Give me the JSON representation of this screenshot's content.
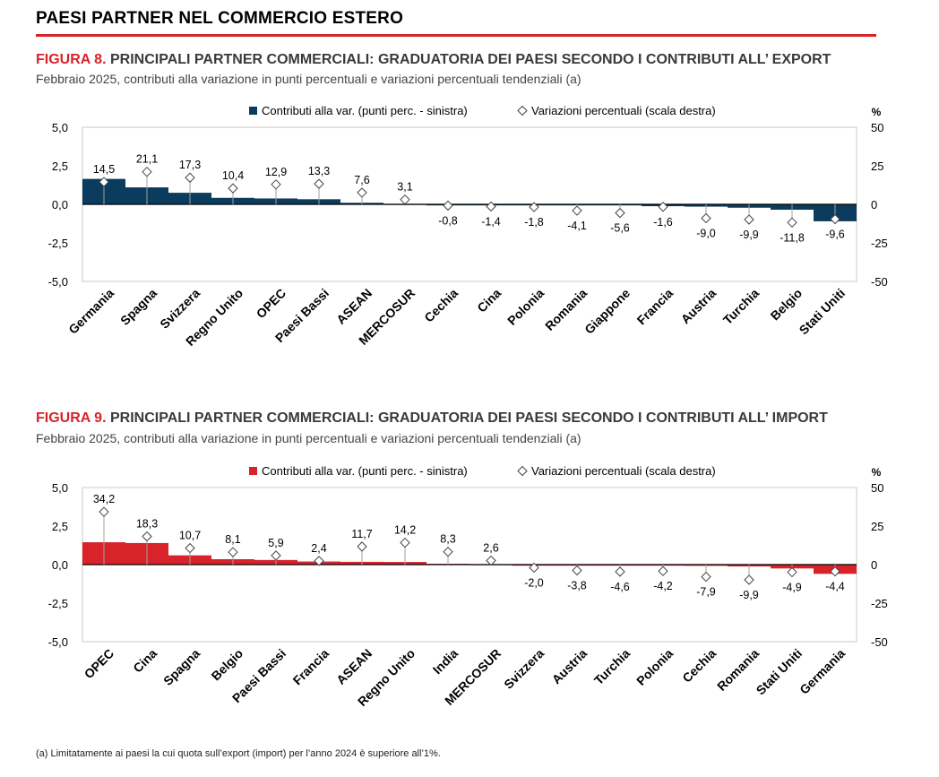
{
  "page_title": "PAESI PARTNER NEL COMMERCIO ESTERO",
  "colors": {
    "accent": "#d8232a",
    "export_bar": "#0b3c5d",
    "import_bar": "#d8232a"
  },
  "chart_data": [
    {
      "type": "bar",
      "title_num": "FIGURA 8.",
      "title": "PRINCIPALI PARTNER COMMERCIALI: GRADUATORIA DEI PAESI SECONDO I CONTRIBUTI ALL’ EXPORT",
      "subtitle": "Febbraio 2025, contributi alla variazione in punti percentuali e variazioni percentuali tendenziali (a)",
      "right_axis_unit": "%",
      "categories": [
        "Germania",
        "Spagna",
        "Svizzera",
        "Regno Unito",
        "OPEC",
        "Paesi Bassi",
        "ASEAN",
        "MERCOSUR",
        "Cechia",
        "Cina",
        "Polonia",
        "Romania",
        "Giappone",
        "Francia",
        "Austria",
        "Turchia",
        "Belgio",
        "Stati Uniti"
      ],
      "series": [
        {
          "name": "Contributi alla var. (punti perc. - sinistra)",
          "axis": "left",
          "kind": "bar",
          "values": [
            1.65,
            1.1,
            0.75,
            0.42,
            0.38,
            0.33,
            0.1,
            0.03,
            -0.02,
            -0.03,
            -0.04,
            -0.05,
            -0.06,
            -0.12,
            -0.15,
            -0.22,
            -0.35,
            -1.1
          ]
        },
        {
          "name": "Variazioni percentuali (scala destra)",
          "axis": "right",
          "kind": "marker",
          "values": [
            14.5,
            21.1,
            17.3,
            10.4,
            12.9,
            13.3,
            7.6,
            3.1,
            -0.8,
            -1.4,
            -1.8,
            -4.1,
            -5.6,
            -1.6,
            -9.0,
            -9.9,
            -11.8,
            -9.6
          ],
          "labels": [
            "14,5",
            "21,1",
            "17,3",
            "10,4",
            "12,9",
            "13,3",
            "7,6",
            "3,1",
            "-0,8",
            "-1,4",
            "-1,8",
            "-4,1",
            "-5,6",
            "-1,6",
            "-9,0",
            "-9,9",
            "-11,8",
            "-9,6"
          ]
        }
      ],
      "ylim_left": [
        -5,
        5
      ],
      "yticks_left": [
        "5,0",
        "2,5",
        "0,0",
        "-2,5",
        "-5,0"
      ],
      "ylim_right": [
        -50,
        50
      ],
      "yticks_right": [
        "50",
        "25",
        "0",
        "-25",
        "-50"
      ],
      "grid": false,
      "legend_position": "top"
    },
    {
      "type": "bar",
      "title_num": "FIGURA 9.",
      "title": "PRINCIPALI PARTNER COMMERCIALI: GRADUATORIA DEI PAESI SECONDO I CONTRIBUTI ALL’ IMPORT",
      "subtitle": "Febbraio 2025, contributi alla variazione in punti percentuali e variazioni percentuali tendenziali (a)",
      "right_axis_unit": "%",
      "categories": [
        "OPEC",
        "Cina",
        "Spagna",
        "Belgio",
        "Paesi Bassi",
        "Francia",
        "ASEAN",
        "Regno Unito",
        "India",
        "MERCOSUR",
        "Svizzera",
        "Austria",
        "Turchia",
        "Polonia",
        "Cechia",
        "Romania",
        "Stati Uniti",
        "Germania"
      ],
      "series": [
        {
          "name": "Contributi alla var. (punti perc. - sinistra)",
          "axis": "left",
          "kind": "bar",
          "values": [
            1.45,
            1.4,
            0.6,
            0.35,
            0.3,
            0.2,
            0.18,
            0.17,
            0.05,
            0.03,
            -0.02,
            -0.03,
            -0.04,
            -0.05,
            -0.08,
            -0.12,
            -0.25,
            -0.6
          ]
        },
        {
          "name": "Variazioni percentuali (scala destra)",
          "axis": "right",
          "kind": "marker",
          "values": [
            34.2,
            18.3,
            10.7,
            8.1,
            5.9,
            2.4,
            11.7,
            14.2,
            8.3,
            2.6,
            -2.0,
            -3.8,
            -4.6,
            -4.2,
            -7.9,
            -9.9,
            -4.9,
            -4.4
          ],
          "labels": [
            "34,2",
            "18,3",
            "10,7",
            "8,1",
            "5,9",
            "2,4",
            "11,7",
            "14,2",
            "8,3",
            "2,6",
            "-2,0",
            "-3,8",
            "-4,6",
            "-4,2",
            "-7,9",
            "-9,9",
            "-4,9",
            "-4,4"
          ]
        }
      ],
      "ylim_left": [
        -5,
        5
      ],
      "yticks_left": [
        "5,0",
        "2,5",
        "0,0",
        "-2,5",
        "-5,0"
      ],
      "ylim_right": [
        -50,
        50
      ],
      "yticks_right": [
        "50",
        "25",
        "0",
        "-25",
        "-50"
      ],
      "grid": false,
      "legend_position": "top"
    }
  ],
  "footnote": "(a) Limitatamente ai paesi la cui quota sull’export (import) per l’anno 2024 è superiore all’1%."
}
